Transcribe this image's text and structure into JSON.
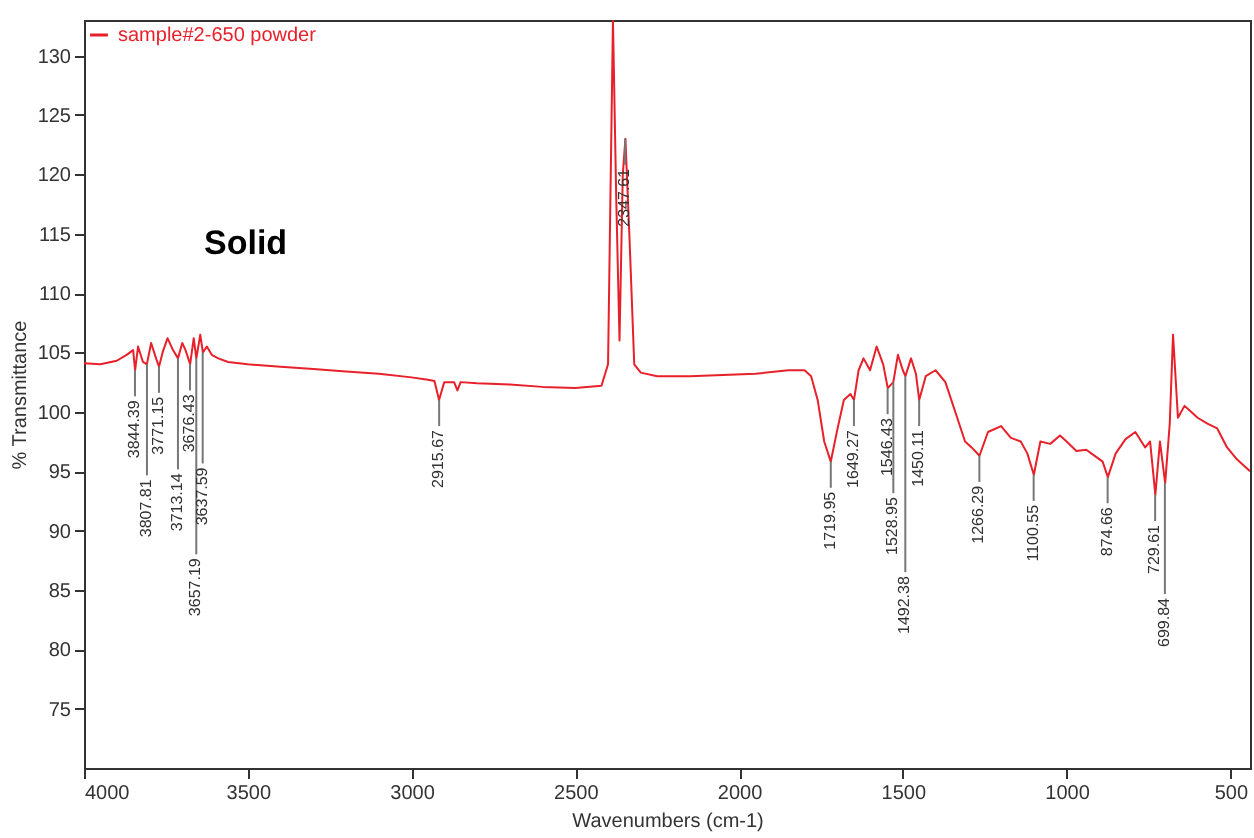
{
  "chart_data": {
    "type": "line",
    "xlabel": "Wavenumbers (cm-1)",
    "ylabel": "% Transmittance",
    "xlim": [
      4000,
      440
    ],
    "ylim": [
      70,
      133
    ],
    "xticks": [
      4000,
      3500,
      3000,
      2500,
      2000,
      1500,
      1000,
      500
    ],
    "yticks": [
      75,
      80,
      85,
      90,
      95,
      100,
      105,
      110,
      115,
      120,
      125,
      130
    ],
    "grid": false,
    "legend": "top left",
    "marker": "none",
    "line_style": "solid",
    "x": [
      4000,
      3950,
      3900,
      3870,
      3850,
      3844,
      3835,
      3820,
      3808,
      3795,
      3780,
      3771,
      3760,
      3745,
      3730,
      3713,
      3700,
      3690,
      3676,
      3665,
      3657,
      3645,
      3637,
      3625,
      3610,
      3590,
      3560,
      3500,
      3400,
      3300,
      3200,
      3100,
      3000,
      2950,
      2930,
      2916,
      2900,
      2870,
      2860,
      2850,
      2800,
      2700,
      2600,
      2500,
      2420,
      2400,
      2385,
      2375,
      2365,
      2355,
      2347,
      2335,
      2320,
      2300,
      2250,
      2150,
      2050,
      1950,
      1850,
      1800,
      1780,
      1760,
      1740,
      1720,
      1700,
      1680,
      1660,
      1649,
      1635,
      1620,
      1600,
      1580,
      1560,
      1546,
      1529,
      1515,
      1500,
      1492,
      1475,
      1460,
      1450,
      1430,
      1400,
      1370,
      1340,
      1310,
      1290,
      1266,
      1240,
      1200,
      1170,
      1140,
      1120,
      1100,
      1080,
      1050,
      1020,
      1000,
      970,
      940,
      910,
      890,
      874,
      850,
      820,
      790,
      760,
      745,
      729,
      715,
      699,
      685,
      675,
      660,
      640,
      620,
      600,
      570,
      540,
      510,
      480,
      460,
      440
    ],
    "series": [
      {
        "name": "sample#2-650 powder",
        "color": "#e8202a",
        "values": [
          104.1,
          104.0,
          104.3,
          104.8,
          105.2,
          103.5,
          105.5,
          104.2,
          104.0,
          105.8,
          104.5,
          103.8,
          105.0,
          106.2,
          105.3,
          104.5,
          105.8,
          105.2,
          104.0,
          106.2,
          104.5,
          106.5,
          105.0,
          105.5,
          104.8,
          104.5,
          104.2,
          104.0,
          103.8,
          103.6,
          103.4,
          103.2,
          102.9,
          102.7,
          102.6,
          101.0,
          102.5,
          102.5,
          101.8,
          102.5,
          102.4,
          102.3,
          102.1,
          102.0,
          102.2,
          104.0,
          133.0,
          118.0,
          106.0,
          120.0,
          123.0,
          115.0,
          104.0,
          103.3,
          103.0,
          103.0,
          103.1,
          103.2,
          103.5,
          103.5,
          103.0,
          101.0,
          97.5,
          95.8,
          98.5,
          101.0,
          101.5,
          101.0,
          103.5,
          104.5,
          103.5,
          105.5,
          104.0,
          102.0,
          102.5,
          104.8,
          103.5,
          103.0,
          104.5,
          103.2,
          101.0,
          103.0,
          103.5,
          102.5,
          100.0,
          97.5,
          97.0,
          96.3,
          98.3,
          98.8,
          97.8,
          97.5,
          96.5,
          94.7,
          97.5,
          97.3,
          98.0,
          97.5,
          96.7,
          96.8,
          96.2,
          95.8,
          94.5,
          96.5,
          97.7,
          98.3,
          97.0,
          97.5,
          93.0,
          97.5,
          94.0,
          99.0,
          106.5,
          99.5,
          100.5,
          100.0,
          99.5,
          99.0,
          98.6,
          97.0,
          96.0,
          95.5,
          95.0
        ]
      }
    ],
    "annotations": [
      "Solid",
      {
        "text": "3844.39",
        "x": 3844.39,
        "y": 103.5
      },
      {
        "text": "3807.81",
        "x": 3807.81,
        "y": 104
      },
      {
        "text": "3771.15",
        "x": 3771.15,
        "y": 103.8
      },
      {
        "text": "3713.14",
        "x": 3713.14,
        "y": 104.5
      },
      {
        "text": "3676.43",
        "x": 3676.43,
        "y": 104
      },
      {
        "text": "3657.19",
        "x": 3657.19,
        "y": 104.5
      },
      {
        "text": "3637.59",
        "x": 3637.59,
        "y": 105
      },
      {
        "text": "2915.67",
        "x": 2915.67,
        "y": 101
      },
      {
        "text": "2347.61",
        "x": 2347.61,
        "y": 123
      },
      {
        "text": "1719.95",
        "x": 1719.95,
        "y": 95.8
      },
      {
        "text": "1649.27",
        "x": 1649.27,
        "y": 101
      },
      {
        "text": "1546.43",
        "x": 1546.43,
        "y": 102
      },
      {
        "text": "1528.95",
        "x": 1528.95,
        "y": 102.5
      },
      {
        "text": "1492.38",
        "x": 1492.38,
        "y": 103
      },
      {
        "text": "1450.11",
        "x": 1450.11,
        "y": 101
      },
      {
        "text": "1266.29",
        "x": 1266.29,
        "y": 96.3
      },
      {
        "text": "1100.55",
        "x": 1100.55,
        "y": 94.7
      },
      {
        "text": "874.66",
        "x": 874.66,
        "y": 94.5
      },
      {
        "text": "729.61",
        "x": 729.61,
        "y": 93
      },
      {
        "text": "699.84",
        "x": 699.84,
        "y": 94
      }
    ]
  }
}
